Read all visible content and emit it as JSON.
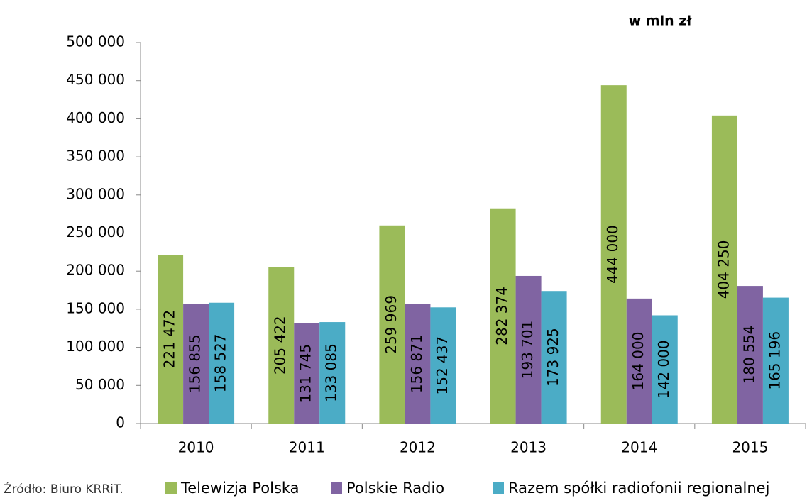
{
  "chart_data": {
    "type": "bar",
    "annotation": "w mln zł",
    "source": "Źródło: Biuro KRRiT.",
    "categories": [
      "2010",
      "2011",
      "2012",
      "2013",
      "2014",
      "2015"
    ],
    "series": [
      {
        "name": "Telewizja Polska",
        "color": "#9bbb59",
        "values": [
          221472,
          205422,
          259969,
          282374,
          444000,
          404250
        ],
        "value_labels": [
          "221 472",
          "205 422",
          "259 969",
          "282 374",
          "444 000",
          "404 250"
        ]
      },
      {
        "name": "Polskie Radio",
        "color": "#8064a2",
        "values": [
          156855,
          131745,
          156871,
          193701,
          164000,
          180554
        ],
        "value_labels": [
          "156 855",
          "131 745",
          "156 871",
          "193 701",
          "164 000",
          "180 554"
        ]
      },
      {
        "name": "Razem spółki radiofonii regionalnej",
        "color": "#4bacc6",
        "values": [
          158527,
          133085,
          152437,
          173925,
          142000,
          165196
        ],
        "value_labels": [
          "158 527",
          "133 085",
          "152 437",
          "173 925",
          "142 000",
          "165 196"
        ]
      }
    ],
    "ylim": [
      0,
      500000
    ],
    "yticks": [
      {
        "value": 0,
        "label": "0"
      },
      {
        "value": 50000,
        "label": "50 000"
      },
      {
        "value": 100000,
        "label": "100 000"
      },
      {
        "value": 150000,
        "label": "150 000"
      },
      {
        "value": 200000,
        "label": "200 000"
      },
      {
        "value": 250000,
        "label": "250 000"
      },
      {
        "value": 300000,
        "label": "300 000"
      },
      {
        "value": 350000,
        "label": "350 000"
      },
      {
        "value": 400000,
        "label": "400 000"
      },
      {
        "value": 450000,
        "label": "450 000"
      },
      {
        "value": 500000,
        "label": "500 000"
      }
    ],
    "grid": false
  }
}
